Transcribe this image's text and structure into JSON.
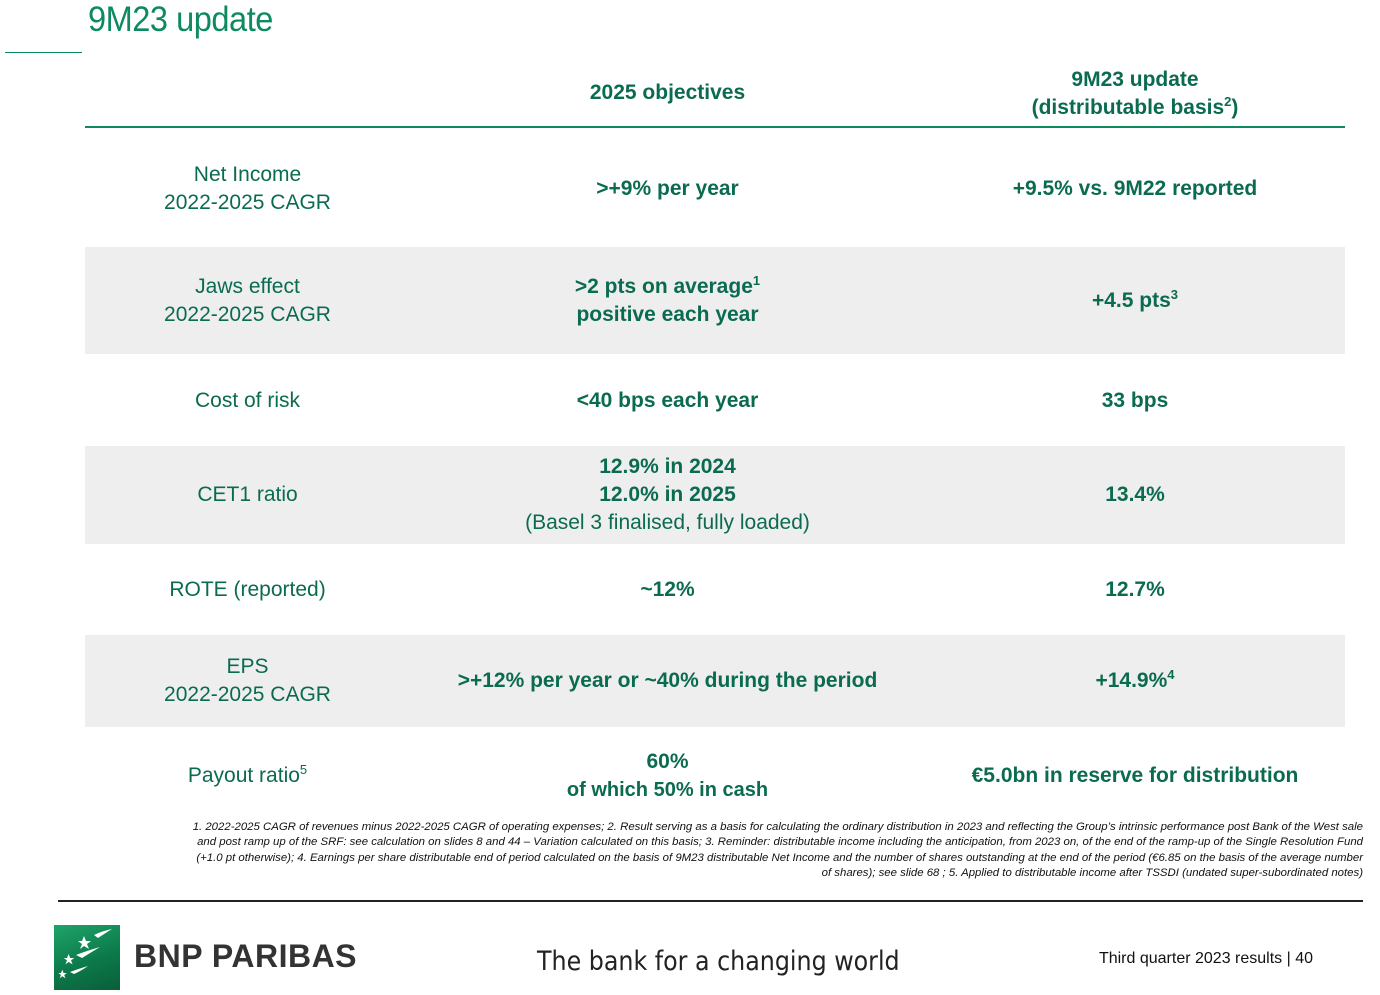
{
  "page": {
    "title": "9M23 update"
  },
  "table": {
    "header": {
      "objectives": "2025 objectives",
      "update_line1": "9M23 update",
      "update_line2": "(distributable basis",
      "update_sup": "2",
      "update_close": ")"
    },
    "rows": [
      {
        "label_lines": [
          "Net Income",
          "2022-2025 CAGR"
        ],
        "objective_lines": [
          ">+9% per year"
        ],
        "update": "+9.5% vs. 9M22 reported"
      },
      {
        "label_lines": [
          "Jaws effect",
          "2022-2025 CAGR"
        ],
        "objective_lines": [
          ">2 pts on average",
          "positive each year"
        ],
        "objective_sup": "1",
        "update": "+4.5 pts",
        "update_sup": "3"
      },
      {
        "label_lines": [
          "Cost of risk"
        ],
        "objective_lines": [
          "<40 bps each year"
        ],
        "update": "33 bps"
      },
      {
        "label_lines": [
          "CET1 ratio"
        ],
        "objective_lines": [
          "12.9% in 2024",
          "12.0% in 2025",
          "(Basel 3 finalised, fully loaded)"
        ],
        "update": "13.4%"
      },
      {
        "label_lines": [
          "ROTE (reported)"
        ],
        "objective_lines": [
          "~12%"
        ],
        "update": "12.7%"
      },
      {
        "label_lines": [
          "EPS",
          "2022-2025 CAGR"
        ],
        "objective_lines": [
          ">+12% per year or ~40% during the period"
        ],
        "update": "+14.9%",
        "update_sup": "4"
      },
      {
        "label": "Payout ratio",
        "label_sup": "5",
        "objective_lines": [
          "60%",
          "of which 50% in cash"
        ],
        "update": "€5.0bn in reserve for distribution"
      }
    ]
  },
  "footnotes": [
    "1. 2022-2025 CAGR of revenues minus 2022-2025 CAGR of operating expenses; 2. Result serving as a basis for calculating the ordinary distribution in 2023 and reflecting the Group’s intrinsic performance post Bank of the West sale",
    "and post ramp up of the SRF: see calculation on slides 8 and 44 – Variation calculated on this basis; 3. Reminder: distributable income including the anticipation, from 2023 on, of the end of the ramp-up of the Single Resolution Fund",
    "(+1.0 pt otherwise); 4. Earnings per share distributable end of period calculated on the basis of 9M23 distributable Net Income and the number of shares outstanding at the end of the period (€6.85 on the basis of the average number",
    "of shares); see slide 68 ; 5. Applied to distributable income after TSSDI (undated super-subordinated notes)"
  ],
  "footer": {
    "brand": "BNP PARIBAS",
    "tagline": "The bank for a changing world",
    "results": "Third quarter 2023 results | 40"
  },
  "colors": {
    "accent": "#0e8a5f",
    "text": "#0b6b50",
    "shade": "#eeeeee"
  }
}
